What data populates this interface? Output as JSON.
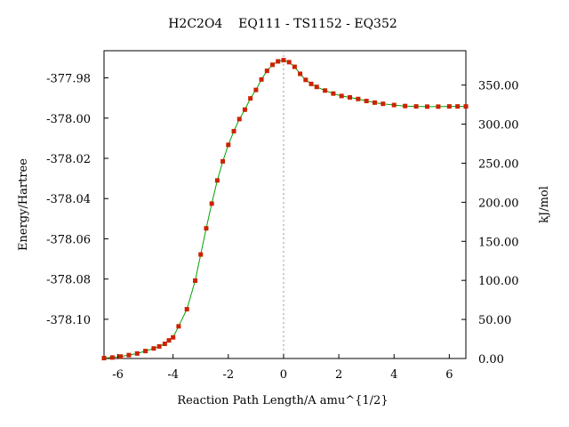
{
  "chart_data": {
    "type": "line",
    "title": "H2C2O4    EQ111 - TS1152 - EQ352",
    "xlabel": "Reaction Path Length/A amu^{1/2}",
    "ylabel_left": "Energy/Hartree",
    "ylabel_right": "kJ/mol",
    "xlim": [
      -6.5,
      6.6
    ],
    "ylim_left": [
      -378.1195,
      -377.9665
    ],
    "ylim_right": [
      0,
      394
    ],
    "x_ticks": [
      -6,
      -4,
      -2,
      0,
      2,
      4,
      6
    ],
    "x_tick_labels": [
      "-6",
      "-4",
      "-2",
      "0",
      "2",
      "4",
      "6"
    ],
    "y_left_ticks": [
      -377.98,
      -378.0,
      -378.02,
      -378.04,
      -378.06,
      -378.08,
      -378.1
    ],
    "y_left_tick_labels": [
      "-377.98",
      "-378.00",
      "-378.02",
      "-378.04",
      "-378.06",
      "-378.08",
      "-378.10"
    ],
    "y_right_ticks": [
      0,
      50,
      100,
      150,
      200,
      250,
      300,
      350
    ],
    "y_right_tick_labels": [
      "0.00",
      "50.00",
      "100.00",
      "150.00",
      "200.00",
      "250.00",
      "300.00",
      "350.00"
    ],
    "ts_line_x": 0,
    "grid": false,
    "line_color": "#00a000",
    "marker_color": "#cc2200",
    "ts_line_color": "#999999",
    "series": [
      {
        "x": [
          -6.5,
          -6.2,
          -5.9,
          -5.6,
          -5.3,
          -5.0,
          -4.7,
          -4.5,
          -4.3,
          -4.15,
          -4.0,
          -3.8,
          -3.5,
          -3.2,
          -3.0,
          -2.8,
          -2.6,
          -2.4,
          -2.2,
          -2.0,
          -1.8,
          -1.6,
          -1.4,
          -1.2,
          -1.0,
          -0.8,
          -0.6,
          -0.4,
          -0.2,
          0.0,
          0.2,
          0.4,
          0.6,
          0.8,
          1.0,
          1.2,
          1.5,
          1.8,
          2.1,
          2.4,
          2.7,
          3.0,
          3.3,
          3.6,
          4.0,
          4.4,
          4.8,
          5.2,
          5.6,
          6.0,
          6.3,
          6.6
        ],
        "y": [
          -378.1193,
          -378.119,
          -378.1185,
          -378.1178,
          -378.117,
          -378.1158,
          -378.1145,
          -378.1135,
          -378.1122,
          -378.1105,
          -378.109,
          -378.1035,
          -378.095,
          -378.0808,
          -378.0678,
          -378.0548,
          -378.0425,
          -378.031,
          -378.0215,
          -378.0133,
          -378.0065,
          -378.0005,
          -377.9958,
          -377.9902,
          -377.986,
          -377.9808,
          -377.9765,
          -377.9735,
          -377.9718,
          -377.9712,
          -377.9722,
          -377.9745,
          -377.978,
          -377.981,
          -377.983,
          -377.9845,
          -377.9863,
          -377.9878,
          -377.989,
          -377.9897,
          -377.9905,
          -377.9915,
          -377.9923,
          -377.9929,
          -377.9935,
          -377.994,
          -377.9942,
          -377.9943,
          -377.9943,
          -377.9942,
          -377.9942,
          -377.9942
        ]
      }
    ]
  }
}
